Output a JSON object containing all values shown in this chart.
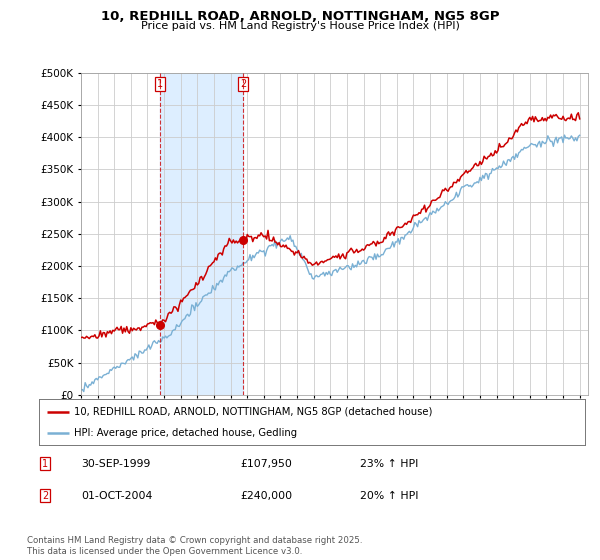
{
  "title_line1": "10, REDHILL ROAD, ARNOLD, NOTTINGHAM, NG5 8GP",
  "title_line2": "Price paid vs. HM Land Registry's House Price Index (HPI)",
  "background_color": "#ffffff",
  "plot_bg_color": "#ffffff",
  "grid_color": "#cccccc",
  "shade_color": "#ddeeff",
  "sale1_date": "30-SEP-1999",
  "sale1_price": 107950,
  "sale1_hpi": "23% ↑ HPI",
  "sale2_date": "01-OCT-2004",
  "sale2_price": 240000,
  "sale2_hpi": "20% ↑ HPI",
  "red_color": "#cc0000",
  "blue_color": "#7ab0d4",
  "legend_label_red": "10, REDHILL ROAD, ARNOLD, NOTTINGHAM, NG5 8GP (detached house)",
  "legend_label_blue": "HPI: Average price, detached house, Gedling",
  "footer": "Contains HM Land Registry data © Crown copyright and database right 2025.\nThis data is licensed under the Open Government Licence v3.0.",
  "ylim_max": 500000,
  "ylim_min": 0,
  "yticks": [
    0,
    50000,
    100000,
    150000,
    200000,
    250000,
    300000,
    350000,
    400000,
    450000,
    500000
  ]
}
